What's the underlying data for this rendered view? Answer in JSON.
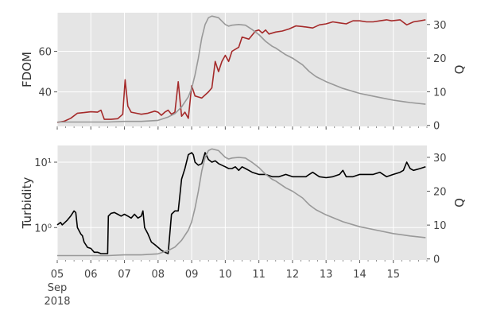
{
  "chart_data": [
    {
      "type": "line",
      "ylabel": "FDOM",
      "y2label": "Q",
      "ylim": [
        23,
        79
      ],
      "y2lim": [
        -0.3,
        33.5
      ],
      "yticks": [
        40,
        60
      ],
      "y2ticks": [
        0,
        10,
        20,
        30
      ],
      "grid": true,
      "series": [
        {
          "axis": "left",
          "color": "#a52a2a",
          "values": [
            [
              5.0,
              25
            ],
            [
              5.2,
              25.5
            ],
            [
              5.4,
              27
            ],
            [
              5.6,
              29.5
            ],
            [
              5.8,
              29.8
            ],
            [
              6.0,
              30.2
            ],
            [
              6.2,
              30
            ],
            [
              6.3,
              31
            ],
            [
              6.4,
              26.5
            ],
            [
              6.6,
              26.5
            ],
            [
              6.8,
              26.8
            ],
            [
              6.95,
              29
            ],
            [
              7.02,
              46
            ],
            [
              7.1,
              33
            ],
            [
              7.2,
              30
            ],
            [
              7.35,
              29.5
            ],
            [
              7.5,
              29
            ],
            [
              7.7,
              29.5
            ],
            [
              7.9,
              30.5
            ],
            [
              8.0,
              30
            ],
            [
              8.1,
              28.5
            ],
            [
              8.2,
              30
            ],
            [
              8.3,
              31
            ],
            [
              8.4,
              29
            ],
            [
              8.5,
              30
            ],
            [
              8.6,
              45
            ],
            [
              8.7,
              28
            ],
            [
              8.8,
              30
            ],
            [
              8.9,
              27
            ],
            [
              9.0,
              43
            ],
            [
              9.1,
              38
            ],
            [
              9.2,
              37.5
            ],
            [
              9.3,
              37
            ],
            [
              9.5,
              40
            ],
            [
              9.6,
              42
            ],
            [
              9.7,
              55
            ],
            [
              9.8,
              50
            ],
            [
              9.9,
              55
            ],
            [
              10.0,
              58
            ],
            [
              10.1,
              55
            ],
            [
              10.2,
              60
            ],
            [
              10.4,
              62
            ],
            [
              10.5,
              67
            ],
            [
              10.7,
              66
            ],
            [
              10.8,
              68
            ],
            [
              10.9,
              70
            ],
            [
              11.0,
              70.5
            ],
            [
              11.1,
              69
            ],
            [
              11.2,
              70.5
            ],
            [
              11.3,
              68.5
            ],
            [
              11.5,
              69.5
            ],
            [
              11.7,
              70
            ],
            [
              11.9,
              71
            ],
            [
              12.1,
              72.5
            ],
            [
              12.4,
              72
            ],
            [
              12.6,
              71.5
            ],
            [
              12.8,
              73
            ],
            [
              13.0,
              73.5
            ],
            [
              13.2,
              74.5
            ],
            [
              13.4,
              74
            ],
            [
              13.6,
              73.5
            ],
            [
              13.8,
              75
            ],
            [
              14.0,
              75
            ],
            [
              14.2,
              74.5
            ],
            [
              14.4,
              74.5
            ],
            [
              14.6,
              75
            ],
            [
              14.8,
              75.5
            ],
            [
              14.95,
              75
            ],
            [
              15.2,
              75.5
            ],
            [
              15.4,
              73
            ],
            [
              15.6,
              74.5
            ],
            [
              15.8,
              75
            ],
            [
              15.96,
              75.5
            ]
          ]
        },
        {
          "axis": "right",
          "color": "#999999",
          "values": [
            [
              5.0,
              1.0
            ],
            [
              5.5,
              1.0
            ],
            [
              6.0,
              1.0
            ],
            [
              6.5,
              1.0
            ],
            [
              7.0,
              1.2
            ],
            [
              7.5,
              1.2
            ],
            [
              8.0,
              1.5
            ],
            [
              8.3,
              2.5
            ],
            [
              8.5,
              3.5
            ],
            [
              8.7,
              5.5
            ],
            [
              8.9,
              8.5
            ],
            [
              9.0,
              11
            ],
            [
              9.1,
              15
            ],
            [
              9.2,
              20
            ],
            [
              9.3,
              26
            ],
            [
              9.4,
              30
            ],
            [
              9.5,
              32
            ],
            [
              9.6,
              32.5
            ],
            [
              9.8,
              32
            ],
            [
              9.9,
              31
            ],
            [
              10.0,
              30
            ],
            [
              10.1,
              29.5
            ],
            [
              10.2,
              29.8
            ],
            [
              10.4,
              30
            ],
            [
              10.6,
              29.8
            ],
            [
              10.8,
              28.5
            ],
            [
              11.0,
              27
            ],
            [
              11.2,
              25
            ],
            [
              11.4,
              23.5
            ],
            [
              11.5,
              23
            ],
            [
              11.8,
              21
            ],
            [
              12.0,
              20
            ],
            [
              12.3,
              18
            ],
            [
              12.5,
              16
            ],
            [
              12.7,
              14.5
            ],
            [
              13.0,
              13
            ],
            [
              13.5,
              11
            ],
            [
              14.0,
              9.5
            ],
            [
              14.5,
              8.5
            ],
            [
              15.0,
              7.5
            ],
            [
              15.5,
              6.8
            ],
            [
              15.96,
              6.3
            ]
          ]
        }
      ]
    },
    {
      "type": "line",
      "ylabel": "Turbidity",
      "y2label": "Q",
      "yscale": "log",
      "ylim": [
        0.32,
        18
      ],
      "y2lim": [
        -0.3,
        33.5
      ],
      "yticklabels": [
        "10⁰",
        "10¹"
      ],
      "yticks": [
        1,
        10
      ],
      "y2ticks": [
        0,
        10,
        20,
        30
      ],
      "xlabel": "",
      "xlim": [
        5,
        16
      ],
      "xticks": [
        5,
        6,
        7,
        8,
        9,
        10,
        11,
        12,
        13,
        14,
        15
      ],
      "xticklabels": [
        "05",
        "06",
        "07",
        "08",
        "09",
        "10",
        "11",
        "12",
        "13",
        "14",
        "15"
      ],
      "xtick_extra": [
        "Sep",
        "2018"
      ],
      "grid": true,
      "series": [
        {
          "axis": "left",
          "color": "#000000",
          "values": [
            [
              5.0,
              1.1
            ],
            [
              5.1,
              1.2
            ],
            [
              5.15,
              1.1
            ],
            [
              5.3,
              1.3
            ],
            [
              5.4,
              1.5
            ],
            [
              5.5,
              1.8
            ],
            [
              5.55,
              1.7
            ],
            [
              5.6,
              1.0
            ],
            [
              5.7,
              0.8
            ],
            [
              5.75,
              0.75
            ],
            [
              5.8,
              0.6
            ],
            [
              5.9,
              0.5
            ],
            [
              6.0,
              0.48
            ],
            [
              6.1,
              0.42
            ],
            [
              6.2,
              0.42
            ],
            [
              6.3,
              0.4
            ],
            [
              6.5,
              0.4
            ],
            [
              6.52,
              1.5
            ],
            [
              6.6,
              1.65
            ],
            [
              6.7,
              1.7
            ],
            [
              6.8,
              1.6
            ],
            [
              6.9,
              1.5
            ],
            [
              7.0,
              1.6
            ],
            [
              7.1,
              1.5
            ],
            [
              7.2,
              1.4
            ],
            [
              7.3,
              1.6
            ],
            [
              7.4,
              1.4
            ],
            [
              7.5,
              1.5
            ],
            [
              7.55,
              1.8
            ],
            [
              7.6,
              1.0
            ],
            [
              7.7,
              0.8
            ],
            [
              7.8,
              0.6
            ],
            [
              7.9,
              0.55
            ],
            [
              8.0,
              0.5
            ],
            [
              8.1,
              0.45
            ],
            [
              8.2,
              0.42
            ],
            [
              8.3,
              0.4
            ],
            [
              8.4,
              1.6
            ],
            [
              8.5,
              1.8
            ],
            [
              8.6,
              1.8
            ],
            [
              8.7,
              5.5
            ],
            [
              8.8,
              8
            ],
            [
              8.9,
              13
            ],
            [
              9.0,
              14
            ],
            [
              9.05,
              13
            ],
            [
              9.1,
              10
            ],
            [
              9.2,
              9
            ],
            [
              9.3,
              9.5
            ],
            [
              9.4,
              14
            ],
            [
              9.5,
              11
            ],
            [
              9.6,
              10
            ],
            [
              9.7,
              10.5
            ],
            [
              9.8,
              9.5
            ],
            [
              9.9,
              9
            ],
            [
              10.0,
              8.5
            ],
            [
              10.1,
              8
            ],
            [
              10.2,
              8
            ],
            [
              10.3,
              8.5
            ],
            [
              10.4,
              7.5
            ],
            [
              10.5,
              8.5
            ],
            [
              10.6,
              8
            ],
            [
              10.7,
              7.5
            ],
            [
              10.8,
              7
            ],
            [
              11.0,
              6.5
            ],
            [
              11.2,
              6.5
            ],
            [
              11.4,
              6
            ],
            [
              11.6,
              6
            ],
            [
              11.8,
              6.5
            ],
            [
              12.0,
              6
            ],
            [
              12.2,
              6
            ],
            [
              12.4,
              6
            ],
            [
              12.5,
              6.5
            ],
            [
              12.6,
              7
            ],
            [
              12.8,
              6
            ],
            [
              13.0,
              5.8
            ],
            [
              13.2,
              6
            ],
            [
              13.4,
              6.5
            ],
            [
              13.5,
              7.5
            ],
            [
              13.6,
              6
            ],
            [
              13.8,
              6
            ],
            [
              14.0,
              6.5
            ],
            [
              14.2,
              6.5
            ],
            [
              14.4,
              6.5
            ],
            [
              14.6,
              7
            ],
            [
              14.8,
              6
            ],
            [
              15.0,
              6.5
            ],
            [
              15.2,
              7
            ],
            [
              15.3,
              7.5
            ],
            [
              15.4,
              10
            ],
            [
              15.5,
              8
            ],
            [
              15.6,
              7.5
            ],
            [
              15.8,
              8
            ],
            [
              15.96,
              8.5
            ]
          ]
        },
        {
          "axis": "right",
          "color": "#999999",
          "values": [
            [
              5.0,
              1.0
            ],
            [
              5.5,
              1.0
            ],
            [
              6.0,
              1.0
            ],
            [
              6.5,
              1.0
            ],
            [
              7.0,
              1.2
            ],
            [
              7.5,
              1.2
            ],
            [
              8.0,
              1.5
            ],
            [
              8.3,
              2.5
            ],
            [
              8.5,
              3.5
            ],
            [
              8.7,
              5.5
            ],
            [
              8.9,
              8.5
            ],
            [
              9.0,
              11
            ],
            [
              9.1,
              15
            ],
            [
              9.2,
              20
            ],
            [
              9.3,
              26
            ],
            [
              9.4,
              30
            ],
            [
              9.5,
              32
            ],
            [
              9.6,
              32.5
            ],
            [
              9.8,
              32
            ],
            [
              9.9,
              31
            ],
            [
              10.0,
              30
            ],
            [
              10.1,
              29.5
            ],
            [
              10.2,
              29.8
            ],
            [
              10.4,
              30
            ],
            [
              10.6,
              29.8
            ],
            [
              10.8,
              28.5
            ],
            [
              11.0,
              27
            ],
            [
              11.2,
              25
            ],
            [
              11.4,
              23.5
            ],
            [
              11.5,
              23
            ],
            [
              11.8,
              21
            ],
            [
              12.0,
              20
            ],
            [
              12.3,
              18
            ],
            [
              12.5,
              16
            ],
            [
              12.7,
              14.5
            ],
            [
              13.0,
              13
            ],
            [
              13.5,
              11
            ],
            [
              14.0,
              9.5
            ],
            [
              14.5,
              8.5
            ],
            [
              15.0,
              7.5
            ],
            [
              15.5,
              6.8
            ],
            [
              15.96,
              6.3
            ]
          ]
        }
      ]
    }
  ]
}
